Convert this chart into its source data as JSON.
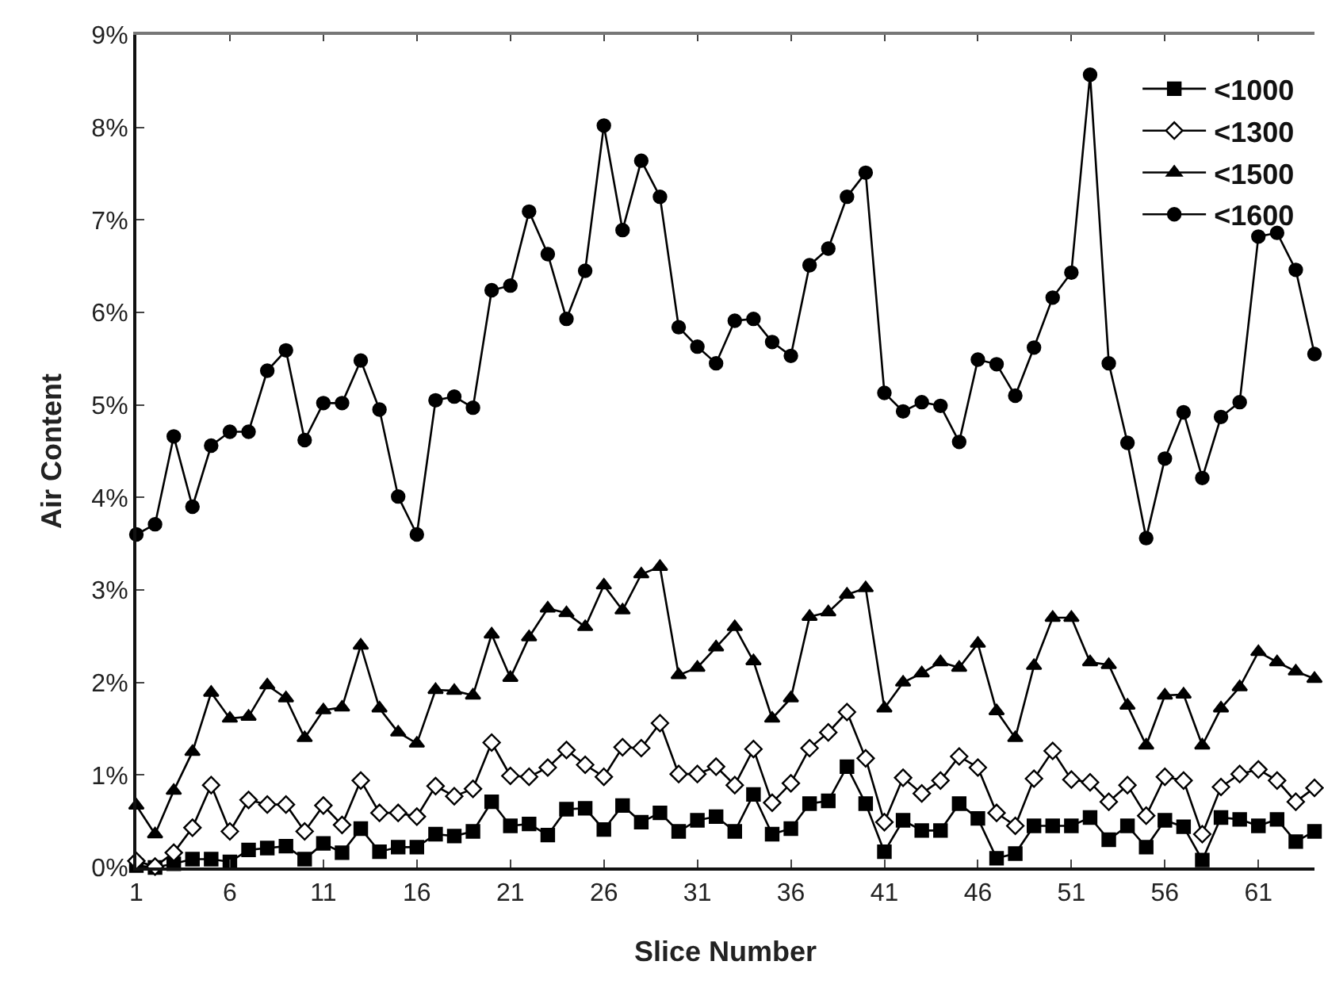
{
  "chart_data": {
    "type": "line",
    "xlabel": "Slice Number",
    "ylabel": "Air Content",
    "x": [
      1,
      2,
      3,
      4,
      5,
      6,
      7,
      8,
      9,
      10,
      11,
      12,
      13,
      14,
      15,
      16,
      17,
      18,
      19,
      20,
      21,
      22,
      23,
      24,
      25,
      26,
      27,
      28,
      29,
      30,
      31,
      32,
      33,
      34,
      35,
      36,
      37,
      38,
      39,
      40,
      41,
      42,
      43,
      44,
      45,
      46,
      47,
      48,
      49,
      50,
      51,
      52,
      53,
      54,
      55,
      56,
      57,
      58,
      59,
      60,
      61,
      62,
      63,
      64
    ],
    "series": [
      {
        "name": "<1000",
        "color": "#000000",
        "marker": "square",
        "values": [
          0.02,
          0.0,
          0.04,
          0.09,
          0.09,
          0.06,
          0.19,
          0.21,
          0.23,
          0.09,
          0.26,
          0.16,
          0.42,
          0.17,
          0.22,
          0.22,
          0.36,
          0.34,
          0.39,
          0.71,
          0.45,
          0.47,
          0.35,
          0.63,
          0.64,
          0.41,
          0.67,
          0.49,
          0.59,
          0.39,
          0.51,
          0.55,
          0.39,
          0.79,
          0.36,
          0.42,
          0.69,
          0.72,
          1.09,
          0.69,
          0.17,
          0.51,
          0.4,
          0.4,
          0.69,
          0.53,
          0.1,
          0.15,
          0.45,
          0.45,
          0.45,
          0.54,
          0.3,
          0.45,
          0.22,
          0.51,
          0.44,
          0.08,
          0.54,
          0.52,
          0.45,
          0.52,
          0.28,
          0.39
        ]
      },
      {
        "name": "<1300",
        "color": "#000000",
        "marker": "diamond",
        "values": [
          0.07,
          0.01,
          0.16,
          0.43,
          0.89,
          0.39,
          0.73,
          0.68,
          0.68,
          0.39,
          0.67,
          0.46,
          0.94,
          0.59,
          0.59,
          0.55,
          0.88,
          0.77,
          0.85,
          1.35,
          0.99,
          0.98,
          1.08,
          1.27,
          1.11,
          0.98,
          1.3,
          1.29,
          1.56,
          1.01,
          1.01,
          1.09,
          0.89,
          1.28,
          0.7,
          0.91,
          1.29,
          1.46,
          1.68,
          1.18,
          0.49,
          0.97,
          0.8,
          0.94,
          1.2,
          1.08,
          0.59,
          0.45,
          0.96,
          1.26,
          0.95,
          0.92,
          0.71,
          0.89,
          0.56,
          0.98,
          0.94,
          0.36,
          0.87,
          1.01,
          1.06,
          0.94,
          0.71,
          0.86
        ]
      },
      {
        "name": "<1500",
        "color": "#000000",
        "marker": "triangle",
        "values": [
          0.67,
          0.36,
          0.83,
          1.25,
          1.89,
          1.61,
          1.63,
          1.97,
          1.83,
          1.4,
          1.7,
          1.73,
          2.4,
          1.72,
          1.46,
          1.34,
          1.92,
          1.91,
          1.86,
          2.52,
          2.05,
          2.49,
          2.8,
          2.75,
          2.6,
          3.05,
          2.78,
          3.17,
          3.25,
          2.08,
          2.16,
          2.38,
          2.6,
          2.23,
          1.61,
          1.83,
          2.71,
          2.76,
          2.95,
          3.02,
          1.72,
          2.0,
          2.1,
          2.22,
          2.16,
          2.42,
          1.69,
          1.4,
          2.18,
          2.7,
          2.7,
          2.22,
          2.19,
          1.75,
          1.32,
          1.86,
          1.87,
          1.32,
          1.72,
          1.95,
          2.33,
          2.22,
          2.12,
          2.04
        ]
      },
      {
        "name": "<1600",
        "color": "#000000",
        "marker": "circle",
        "values": [
          3.6,
          3.71,
          4.66,
          3.9,
          4.56,
          4.71,
          4.71,
          5.37,
          5.59,
          4.62,
          5.02,
          5.02,
          5.48,
          4.95,
          4.01,
          3.6,
          5.05,
          5.09,
          4.97,
          6.24,
          6.29,
          7.09,
          6.63,
          5.93,
          6.45,
          8.02,
          6.89,
          7.64,
          7.25,
          5.84,
          5.63,
          5.45,
          5.91,
          5.93,
          5.68,
          5.53,
          6.51,
          6.69,
          7.25,
          7.51,
          5.13,
          4.93,
          5.03,
          4.99,
          4.6,
          5.49,
          5.44,
          5.1,
          5.62,
          6.16,
          6.43,
          8.57,
          5.45,
          4.59,
          3.56,
          4.42,
          4.92,
          4.21,
          4.87,
          5.03,
          6.82,
          6.86,
          6.46,
          5.55
        ]
      }
    ],
    "xlim": [
      1,
      64
    ],
    "xticks": [
      1,
      6,
      11,
      16,
      21,
      26,
      31,
      36,
      41,
      46,
      51,
      56,
      61
    ],
    "ylim": [
      0,
      9
    ],
    "yticks": [
      {
        "value": 0,
        "label": "0%"
      },
      {
        "value": 1,
        "label": "1%"
      },
      {
        "value": 2,
        "label": "2%"
      },
      {
        "value": 3,
        "label": "3%"
      },
      {
        "value": 4,
        "label": "4%"
      },
      {
        "value": 5,
        "label": "5%"
      },
      {
        "value": 6,
        "label": "6%"
      },
      {
        "value": 7,
        "label": "7%"
      },
      {
        "value": 8,
        "label": "8%"
      },
      {
        "value": 9,
        "label": "9%"
      }
    ],
    "legend": "top right",
    "line_style": "solid"
  }
}
